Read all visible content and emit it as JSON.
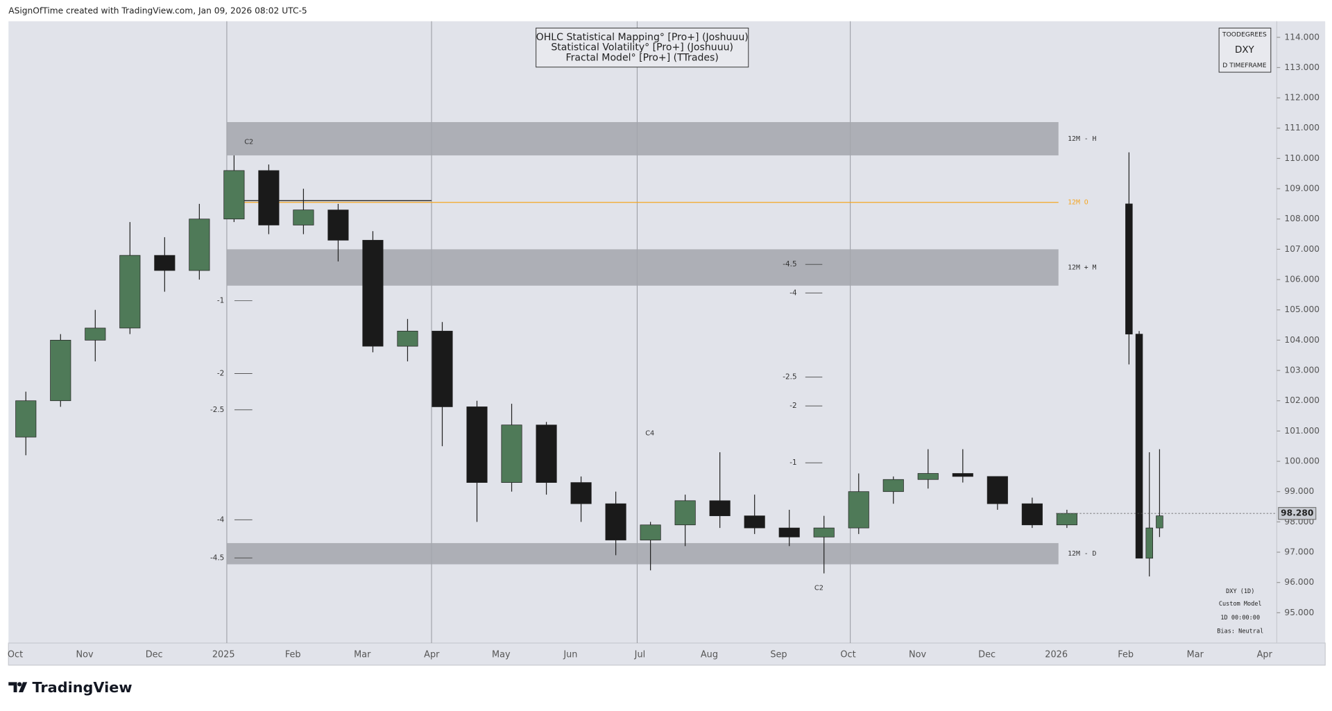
{
  "header": {
    "text": "ASignOfTime created with TradingView.com, Jan 09, 2026 08:02 UTC-5"
  },
  "footer": {
    "brand": "TradingView"
  },
  "chart_data": {
    "type": "candlestick",
    "legend_lines": [
      "OHLC Statistical Mapping° [Pro+] (Joshuuu)",
      "Statistical Volatility° [Pro+] (Joshuuu)",
      "Fractal Model° [Pro+] (TTrades)"
    ],
    "info_box": [
      "TOODEGREES",
      "DXY",
      "D TIMEFRAME"
    ],
    "model_info": [
      "DXY (1D)",
      "Custom Model",
      "1D 00:00:00",
      "Bias: Neutral"
    ],
    "x_labels": [
      "Oct",
      "Nov",
      "Dec",
      "2025",
      "Feb",
      "Mar",
      "Apr",
      "May",
      "Jun",
      "Jul",
      "Aug",
      "Sep",
      "Oct",
      "Nov",
      "Dec",
      "2026",
      "Feb",
      "Mar",
      "Apr"
    ],
    "ylim": [
      94,
      114.53
    ],
    "yticks": [
      {
        "value": 95,
        "label": "95.000"
      },
      {
        "value": 96,
        "label": "96.000"
      },
      {
        "value": 97,
        "label": "97.000"
      },
      {
        "value": 98,
        "label": "98.000"
      },
      {
        "value": 99,
        "label": "99.000"
      },
      {
        "value": 100,
        "label": "100.000"
      },
      {
        "value": 101,
        "label": "101.000"
      },
      {
        "value": 102,
        "label": "102.000"
      },
      {
        "value": 103,
        "label": "103.000"
      },
      {
        "value": 104,
        "label": "104.000"
      },
      {
        "value": 105,
        "label": "105.000"
      },
      {
        "value": 106,
        "label": "106.000"
      },
      {
        "value": 107,
        "label": "107.000"
      },
      {
        "value": 108,
        "label": "108.000"
      },
      {
        "value": 109,
        "label": "109.000"
      },
      {
        "value": 110,
        "label": "110.000"
      },
      {
        "value": 111,
        "label": "111.000"
      },
      {
        "value": 112,
        "label": "112.000"
      },
      {
        "value": 113,
        "label": "113.000"
      },
      {
        "value": 114,
        "label": "114.000"
      }
    ],
    "up_color": "#4f7a58",
    "down_color": "#1a1a1a",
    "open": [
      100.8,
      102.0,
      104.0,
      104.4,
      106.8,
      106.3,
      108.0,
      109.6,
      107.8,
      108.3,
      107.3,
      103.8,
      104.3,
      101.8,
      99.3,
      101.2,
      99.3,
      98.6,
      97.4,
      97.9,
      98.7,
      98.2,
      97.8,
      97.5,
      97.8,
      99.0,
      99.4,
      99.6,
      99.5,
      98.6,
      97.9
    ],
    "high": [
      102.3,
      104.2,
      105.0,
      107.9,
      107.4,
      108.5,
      110.1,
      109.8,
      109.0,
      108.5,
      107.6,
      104.7,
      104.6,
      102.0,
      101.9,
      101.3,
      99.5,
      99.0,
      98.0,
      98.9,
      100.3,
      98.9,
      98.4,
      98.2,
      99.6,
      99.5,
      100.4,
      100.4,
      99.5,
      98.8,
      98.4
    ],
    "low": [
      100.2,
      101.8,
      103.3,
      104.2,
      105.6,
      106.0,
      107.9,
      107.5,
      107.5,
      106.6,
      103.6,
      103.3,
      100.5,
      98.0,
      99.0,
      98.9,
      98.0,
      96.9,
      96.4,
      97.2,
      97.8,
      97.6,
      97.2,
      96.3,
      97.6,
      98.6,
      99.1,
      99.3,
      98.4,
      97.8,
      97.8
    ],
    "close": [
      102.0,
      104.0,
      104.4,
      106.8,
      106.3,
      108.0,
      109.6,
      107.8,
      108.3,
      107.3,
      103.8,
      104.3,
      101.8,
      99.3,
      101.2,
      99.3,
      98.6,
      97.4,
      97.9,
      98.7,
      98.2,
      97.8,
      97.5,
      97.8,
      99.0,
      99.4,
      99.6,
      99.5,
      98.6,
      97.9,
      98.28
    ],
    "htf": {
      "open": [
        108.5,
        104.2,
        96.8,
        97.8
      ],
      "high": [
        110.2,
        104.3,
        100.3,
        100.4
      ],
      "low": [
        103.2,
        96.8,
        96.2,
        97.5
      ],
      "close": [
        104.2,
        96.8,
        97.8,
        98.2
      ]
    },
    "last_price": {
      "value": 98.28,
      "label": "98.280"
    },
    "zones": [
      {
        "label": "12M - H",
        "low": 110.1,
        "high": 111.2,
        "color": "#a3a6ad"
      },
      {
        "label": "12M + M",
        "low": 105.8,
        "high": 107.0,
        "color": "#a3a6ad"
      },
      {
        "label": "12M - D",
        "low": 96.6,
        "high": 97.3,
        "color": "#a3a6ad"
      }
    ],
    "open_line": {
      "label": "12M  O",
      "value": 108.55,
      "color": "#f5a623"
    },
    "levels_left": [
      {
        "label": "-1",
        "value": 105.3
      },
      {
        "label": "-2",
        "value": 102.9
      },
      {
        "label": "-2.5",
        "value": 101.7
      },
      {
        "label": "-4",
        "value": 98.07
      },
      {
        "label": "-4.5",
        "value": 96.81
      }
    ],
    "levels_right": [
      {
        "label": "-4.5",
        "value": 106.5
      },
      {
        "label": "-4",
        "value": 105.56
      },
      {
        "label": "-2.5",
        "value": 102.78
      },
      {
        "label": "-2",
        "value": 101.83
      },
      {
        "label": "-1",
        "value": 99.95
      }
    ],
    "cycle_labels": [
      "C2",
      "C4",
      "C2"
    ]
  }
}
